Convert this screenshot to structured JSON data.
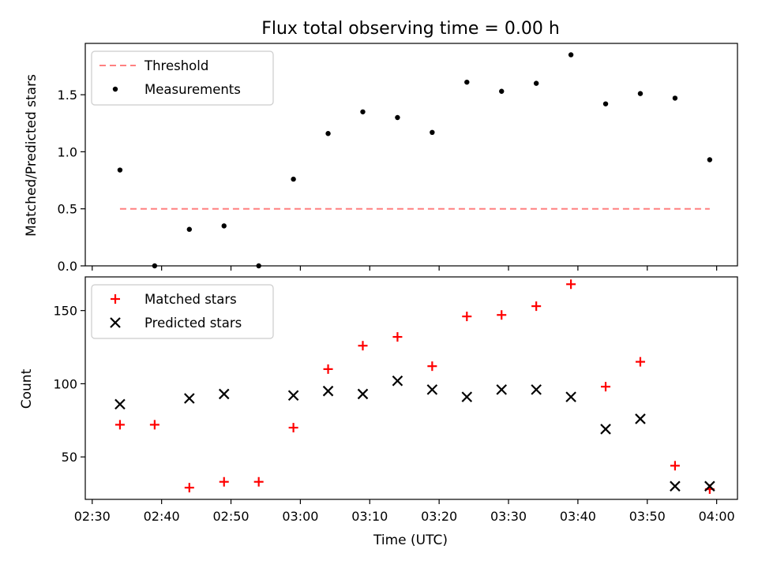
{
  "chart_data": [
    {
      "type": "scatter",
      "title": "Flux total observing time = 0.00 h",
      "xlabel": "",
      "ylabel": "Matched/Predicted stars",
      "xlim": [
        "02:29",
        "04:03"
      ],
      "ylim": [
        0,
        1.95
      ],
      "yticks": [
        0.0,
        0.5,
        1.0,
        1.5
      ],
      "ytick_labels": [
        "0.0",
        "0.5",
        "1.0",
        "1.5"
      ],
      "x_tick_times": [
        "02:30",
        "02:40",
        "02:50",
        "03:00",
        "03:10",
        "03:20",
        "03:30",
        "03:40",
        "03:50",
        "04:00"
      ],
      "x_tick_labels_shown": false,
      "legend_position": "upper-left",
      "legend": [
        "Threshold",
        "Measurements"
      ],
      "threshold": {
        "name": "Threshold",
        "value": 0.5,
        "x_start": "02:34",
        "x_end": "03:59",
        "color": "#ff8080",
        "style": "dashed"
      },
      "series": [
        {
          "name": "Measurements",
          "marker": "dot",
          "color": "#000000",
          "x": [
            "02:34",
            "02:39",
            "02:44",
            "02:49",
            "02:54",
            "02:59",
            "03:04",
            "03:09",
            "03:14",
            "03:19",
            "03:24",
            "03:29",
            "03:34",
            "03:39",
            "03:44",
            "03:49",
            "03:54",
            "03:59"
          ],
          "values": [
            0.84,
            0.0,
            0.32,
            0.35,
            0.0,
            0.76,
            1.16,
            1.35,
            1.3,
            1.17,
            1.61,
            1.53,
            1.6,
            1.85,
            1.42,
            1.51,
            1.47,
            0.93
          ]
        }
      ]
    },
    {
      "type": "scatter",
      "title": "",
      "xlabel": "Time (UTC)",
      "ylabel": "Count",
      "xlim": [
        "02:29",
        "04:03"
      ],
      "ylim": [
        21,
        173
      ],
      "yticks": [
        50,
        100,
        150
      ],
      "ytick_labels": [
        "50",
        "100",
        "150"
      ],
      "x_tick_times": [
        "02:30",
        "02:40",
        "02:50",
        "03:00",
        "03:10",
        "03:20",
        "03:30",
        "03:40",
        "03:50",
        "04:00"
      ],
      "x_tick_labels": [
        "02:30",
        "02:40",
        "02:50",
        "03:00",
        "03:10",
        "03:20",
        "03:30",
        "03:40",
        "03:50",
        "04:00"
      ],
      "legend_position": "upper-left",
      "legend": [
        "Matched stars",
        "Predicted stars"
      ],
      "series": [
        {
          "name": "Matched stars",
          "marker": "plus",
          "color": "#ff0000",
          "x": [
            "02:34",
            "02:39",
            "02:44",
            "02:49",
            "02:54",
            "02:59",
            "03:04",
            "03:09",
            "03:14",
            "03:19",
            "03:24",
            "03:29",
            "03:34",
            "03:39",
            "03:44",
            "03:49",
            "03:54",
            "03:59"
          ],
          "values": [
            72,
            72,
            29,
            33,
            33,
            70,
            110,
            126,
            132,
            112,
            146,
            147,
            153,
            168,
            98,
            115,
            44,
            28
          ]
        },
        {
          "name": "Predicted stars",
          "marker": "x",
          "color": "#000000",
          "x": [
            "02:34",
            "02:44",
            "02:49",
            "02:59",
            "03:04",
            "03:09",
            "03:14",
            "03:19",
            "03:24",
            "03:29",
            "03:34",
            "03:39",
            "03:44",
            "03:49",
            "03:54",
            "03:59"
          ],
          "values": [
            86,
            90,
            93,
            92,
            95,
            93,
            102,
            96,
            91,
            96,
            96,
            91,
            69,
            76,
            30,
            30
          ]
        }
      ]
    }
  ]
}
